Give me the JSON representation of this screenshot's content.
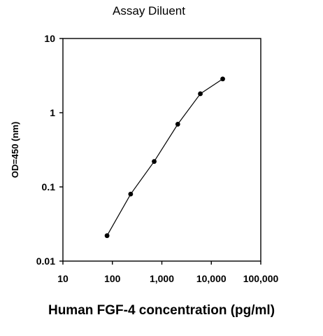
{
  "chart_data": {
    "type": "line",
    "title": "Assay Diluent",
    "xlabel": "Human FGF-4 concentration (pg/ml)",
    "ylabel": "OD=450 (nm)",
    "x_scale": "log",
    "y_scale": "log",
    "xlim": [
      10,
      100000
    ],
    "ylim": [
      0.01,
      10
    ],
    "x_ticks": [
      10,
      100,
      1000,
      10000,
      100000
    ],
    "x_tick_labels": [
      "10",
      "100",
      "1,000",
      "10,000",
      "100,000"
    ],
    "y_ticks": [
      0.01,
      0.1,
      1,
      10
    ],
    "y_tick_labels": [
      "0.01",
      "0.1",
      "1",
      "10"
    ],
    "grid": false,
    "legend": "none",
    "series": [
      {
        "x": [
          78,
          234,
          700,
          2100,
          6000,
          17000
        ],
        "y": [
          0.022,
          0.08,
          0.22,
          0.7,
          1.8,
          2.85
        ]
      }
    ],
    "colors": {
      "line": "#000000",
      "marker": "#000000",
      "axis": "#000000"
    }
  }
}
